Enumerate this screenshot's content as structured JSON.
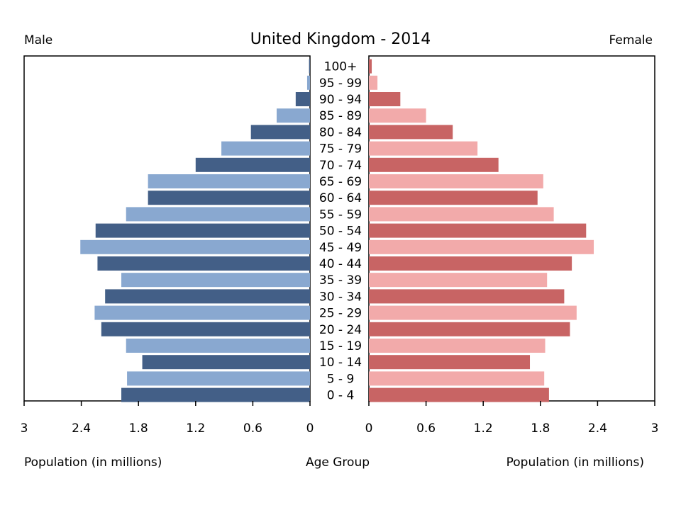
{
  "chart_data": {
    "type": "bar",
    "subtype": "population-pyramid",
    "title": "United Kingdom - 2014",
    "left_label": "Male",
    "right_label": "Female",
    "xlabel_left": "Population (in millions)",
    "xlabel_center": "Age Group",
    "xlabel_right": "Population (in millions)",
    "xlim": [
      0,
      3
    ],
    "x_ticks": [
      3,
      2.4,
      1.8,
      1.2,
      0.6,
      0
    ],
    "x_tick_labels_left": [
      "3",
      "2.4",
      "1.8",
      "1.2",
      "0.6",
      "0"
    ],
    "x_tick_labels_right": [
      "0",
      "0.6",
      "1.2",
      "1.8",
      "2.4",
      "3"
    ],
    "categories": [
      "100+",
      "95 - 99",
      "90 - 94",
      "85 - 89",
      "80 - 84",
      "75 - 79",
      "70 - 74",
      "65 - 69",
      "60 - 64",
      "55 - 59",
      "50 - 54",
      "45 - 49",
      "40 - 44",
      "35 - 39",
      "30 - 34",
      "25 - 29",
      "20 - 24",
      "15 - 19",
      "10 - 14",
      "5 - 9",
      "0 - 4"
    ],
    "series": [
      {
        "name": "Male",
        "values": [
          0.01,
          0.03,
          0.15,
          0.35,
          0.62,
          0.93,
          1.2,
          1.7,
          1.7,
          1.93,
          2.25,
          2.41,
          2.23,
          1.98,
          2.15,
          2.26,
          2.19,
          1.93,
          1.76,
          1.92,
          1.98
        ],
        "colors": [
          "#435f87",
          "#89a8d0"
        ]
      },
      {
        "name": "Female",
        "values": [
          0.03,
          0.09,
          0.33,
          0.6,
          0.88,
          1.14,
          1.36,
          1.83,
          1.77,
          1.94,
          2.28,
          2.36,
          2.13,
          1.87,
          2.05,
          2.18,
          2.11,
          1.85,
          1.69,
          1.84,
          1.89
        ],
        "colors": [
          "#c86464",
          "#f2aaaa"
        ]
      }
    ]
  }
}
